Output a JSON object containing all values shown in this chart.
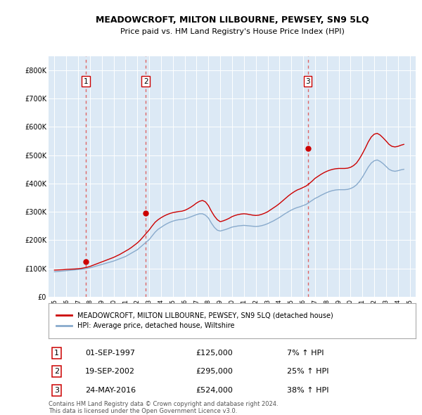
{
  "title": "MEADOWCROFT, MILTON LILBOURNE, PEWSEY, SN9 5LQ",
  "subtitle": "Price paid vs. HM Land Registry's House Price Index (HPI)",
  "bg_color": "#dce9f5",
  "grid_color": "#ffffff",
  "ylim": [
    0,
    850000
  ],
  "yticks": [
    0,
    100000,
    200000,
    300000,
    400000,
    500000,
    600000,
    700000,
    800000
  ],
  "ytick_labels": [
    "£0",
    "£100K",
    "£200K",
    "£300K",
    "£400K",
    "£500K",
    "£600K",
    "£700K",
    "£800K"
  ],
  "xlim_start": 1994.5,
  "xlim_end": 2025.5,
  "xticks": [
    1995,
    1996,
    1997,
    1998,
    1999,
    2000,
    2001,
    2002,
    2003,
    2004,
    2005,
    2006,
    2007,
    2008,
    2009,
    2010,
    2011,
    2012,
    2013,
    2014,
    2015,
    2016,
    2017,
    2018,
    2019,
    2020,
    2021,
    2022,
    2023,
    2024,
    2025
  ],
  "sale_dates": [
    1997.667,
    2002.717,
    2016.389
  ],
  "sale_prices": [
    125000,
    295000,
    524000
  ],
  "sale_labels": [
    "1",
    "2",
    "3"
  ],
  "red_line_color": "#cc0000",
  "blue_line_color": "#88aacc",
  "dot_color": "#cc0000",
  "dashed_color": "#dd6666",
  "legend_label_red": "MEADOWCROFT, MILTON LILBOURNE, PEWSEY, SN9 5LQ (detached house)",
  "legend_label_blue": "HPI: Average price, detached house, Wiltshire",
  "table_rows": [
    [
      "1",
      "01-SEP-1997",
      "£125,000",
      "7% ↑ HPI"
    ],
    [
      "2",
      "19-SEP-2002",
      "£295,000",
      "25% ↑ HPI"
    ],
    [
      "3",
      "24-MAY-2016",
      "£524,000",
      "38% ↑ HPI"
    ]
  ],
  "footnote": "Contains HM Land Registry data © Crown copyright and database right 2024.\nThis data is licensed under the Open Government Licence v3.0.",
  "hpi_years": [
    1995,
    1995.25,
    1995.5,
    1995.75,
    1996,
    1996.25,
    1996.5,
    1996.75,
    1997,
    1997.25,
    1997.5,
    1997.75,
    1998,
    1998.25,
    1998.5,
    1998.75,
    1999,
    1999.25,
    1999.5,
    1999.75,
    2000,
    2000.25,
    2000.5,
    2000.75,
    2001,
    2001.25,
    2001.5,
    2001.75,
    2002,
    2002.25,
    2002.5,
    2002.75,
    2003,
    2003.25,
    2003.5,
    2003.75,
    2004,
    2004.25,
    2004.5,
    2004.75,
    2005,
    2005.25,
    2005.5,
    2005.75,
    2006,
    2006.25,
    2006.5,
    2006.75,
    2007,
    2007.25,
    2007.5,
    2007.75,
    2008,
    2008.25,
    2008.5,
    2008.75,
    2009,
    2009.25,
    2009.5,
    2009.75,
    2010,
    2010.25,
    2010.5,
    2010.75,
    2011,
    2011.25,
    2011.5,
    2011.75,
    2012,
    2012.25,
    2012.5,
    2012.75,
    2013,
    2013.25,
    2013.5,
    2013.75,
    2014,
    2014.25,
    2014.5,
    2014.75,
    2015,
    2015.25,
    2015.5,
    2015.75,
    2016,
    2016.25,
    2016.5,
    2016.75,
    2017,
    2017.25,
    2017.5,
    2017.75,
    2018,
    2018.25,
    2018.5,
    2018.75,
    2019,
    2019.25,
    2019.5,
    2019.75,
    2020,
    2020.25,
    2020.5,
    2020.75,
    2021,
    2021.25,
    2021.5,
    2021.75,
    2022,
    2022.25,
    2022.5,
    2022.75,
    2023,
    2023.25,
    2023.5,
    2023.75,
    2024,
    2024.25,
    2024.5
  ],
  "hpi_values": [
    88000,
    89000,
    90000,
    91000,
    92000,
    93000,
    94000,
    95000,
    96000,
    97000,
    98500,
    100000,
    102000,
    105000,
    108000,
    111000,
    114000,
    117000,
    120000,
    123000,
    126000,
    130000,
    134000,
    138000,
    142000,
    148000,
    154000,
    160000,
    166000,
    175000,
    184000,
    193000,
    202000,
    215000,
    228000,
    238000,
    245000,
    252000,
    258000,
    263000,
    267000,
    270000,
    272000,
    273000,
    275000,
    278000,
    282000,
    286000,
    290000,
    293000,
    293000,
    288000,
    278000,
    260000,
    245000,
    235000,
    232000,
    235000,
    238000,
    242000,
    246000,
    248000,
    250000,
    251000,
    252000,
    251000,
    250000,
    249000,
    248000,
    249000,
    251000,
    254000,
    258000,
    263000,
    268000,
    274000,
    280000,
    287000,
    294000,
    300000,
    306000,
    311000,
    315000,
    318000,
    322000,
    326000,
    333000,
    340000,
    347000,
    352000,
    358000,
    363000,
    368000,
    372000,
    375000,
    377000,
    378000,
    378000,
    378000,
    379000,
    382000,
    387000,
    395000,
    407000,
    422000,
    440000,
    458000,
    472000,
    480000,
    483000,
    478000,
    470000,
    460000,
    450000,
    445000,
    443000,
    445000,
    448000,
    450000
  ],
  "price_years": [
    1995,
    1995.25,
    1995.5,
    1995.75,
    1996,
    1996.25,
    1996.5,
    1996.75,
    1997,
    1997.25,
    1997.5,
    1997.75,
    1998,
    1998.25,
    1998.5,
    1998.75,
    1999,
    1999.25,
    1999.5,
    1999.75,
    2000,
    2000.25,
    2000.5,
    2000.75,
    2001,
    2001.25,
    2001.5,
    2001.75,
    2002,
    2002.25,
    2002.5,
    2002.75,
    2003,
    2003.25,
    2003.5,
    2003.75,
    2004,
    2004.25,
    2004.5,
    2004.75,
    2005,
    2005.25,
    2005.5,
    2005.75,
    2006,
    2006.25,
    2006.5,
    2006.75,
    2007,
    2007.25,
    2007.5,
    2007.75,
    2008,
    2008.25,
    2008.5,
    2008.75,
    2009,
    2009.25,
    2009.5,
    2009.75,
    2010,
    2010.25,
    2010.5,
    2010.75,
    2011,
    2011.25,
    2011.5,
    2011.75,
    2012,
    2012.25,
    2012.5,
    2012.75,
    2013,
    2013.25,
    2013.5,
    2013.75,
    2014,
    2014.25,
    2014.5,
    2014.75,
    2015,
    2015.25,
    2015.5,
    2015.75,
    2016,
    2016.25,
    2016.5,
    2016.75,
    2017,
    2017.25,
    2017.5,
    2017.75,
    2018,
    2018.25,
    2018.5,
    2018.75,
    2019,
    2019.25,
    2019.5,
    2019.75,
    2020,
    2020.25,
    2020.5,
    2020.75,
    2021,
    2021.25,
    2021.5,
    2021.75,
    2022,
    2022.25,
    2022.5,
    2022.75,
    2023,
    2023.25,
    2023.5,
    2023.75,
    2024,
    2024.25,
    2024.5
  ],
  "price_values": [
    94000,
    94500,
    95000,
    95500,
    96500,
    97000,
    97500,
    98000,
    99000,
    100000,
    102000,
    104000,
    107000,
    111000,
    115000,
    119000,
    123000,
    127000,
    131000,
    135000,
    139000,
    144000,
    149000,
    155000,
    161000,
    167000,
    174000,
    182000,
    190000,
    200000,
    212000,
    224000,
    236000,
    250000,
    263000,
    272000,
    279000,
    285000,
    290000,
    294000,
    297000,
    299000,
    301000,
    302000,
    305000,
    310000,
    316000,
    323000,
    331000,
    337000,
    340000,
    335000,
    322000,
    302000,
    285000,
    272000,
    265000,
    268000,
    272000,
    277000,
    283000,
    287000,
    290000,
    292000,
    293000,
    292000,
    290000,
    288000,
    287000,
    288000,
    291000,
    295000,
    300000,
    307000,
    314000,
    321000,
    329000,
    338000,
    347000,
    356000,
    364000,
    371000,
    377000,
    381000,
    386000,
    391000,
    399000,
    408000,
    418000,
    425000,
    432000,
    438000,
    443000,
    447000,
    450000,
    452000,
    453000,
    453000,
    453000,
    454000,
    457000,
    463000,
    472000,
    487000,
    505000,
    525000,
    547000,
    564000,
    574000,
    577000,
    571000,
    561000,
    550000,
    538000,
    531000,
    529000,
    531000,
    535000,
    538000
  ]
}
